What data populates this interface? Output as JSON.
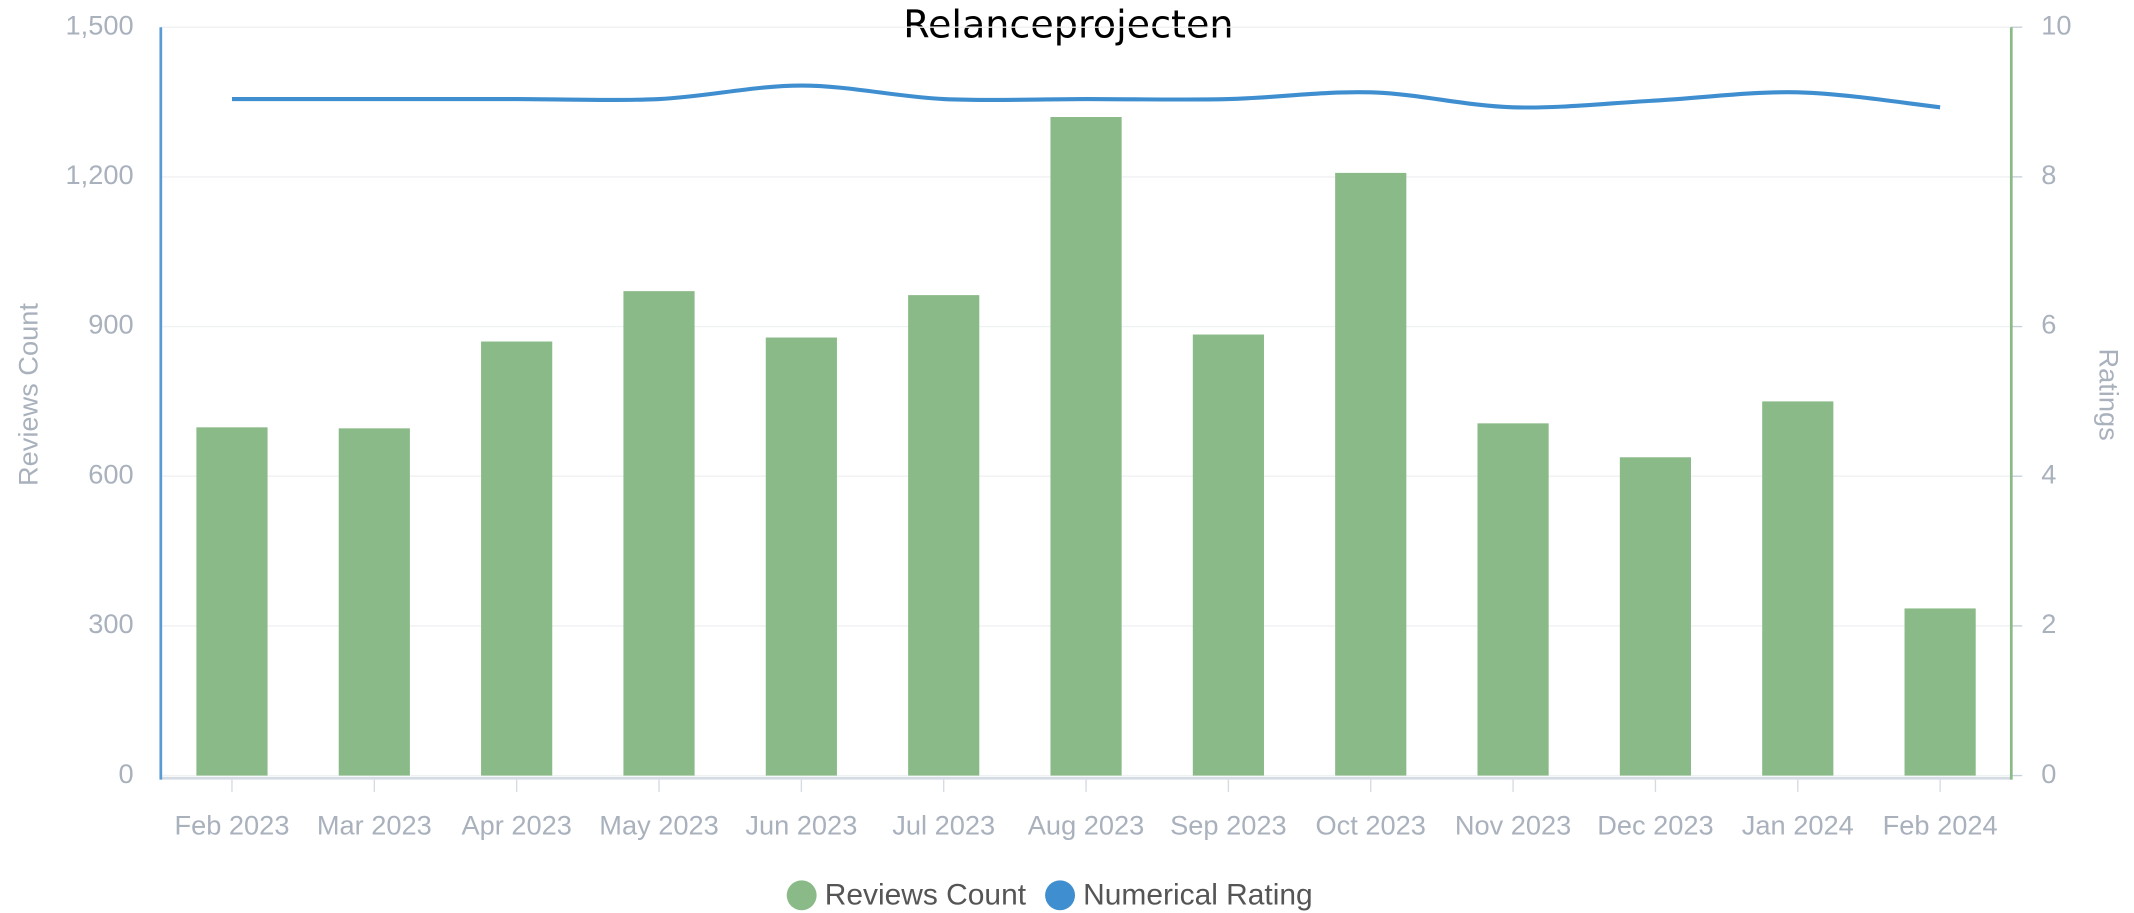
{
  "chart_data": {
    "type": "bar",
    "title": "Relanceprojecten",
    "categories": [
      "Feb 2023",
      "Mar 2023",
      "Apr 2023",
      "May 2023",
      "Jun 2023",
      "Jul 2023",
      "Aug 2023",
      "Sep 2023",
      "Oct 2023",
      "Nov 2023",
      "Dec 2023",
      "Jan 2024",
      "Feb 2024"
    ],
    "series": [
      {
        "name": "Reviews Count",
        "type": "bar",
        "color": "#8aba87",
        "values": [
          698,
          696,
          870,
          971,
          878,
          963,
          1320,
          884,
          1208,
          706,
          638,
          750,
          335
        ]
      },
      {
        "name": "Numerical Rating",
        "type": "line",
        "axis": "y2",
        "color": "#3f8fd0",
        "values": [
          9.04,
          9.04,
          9.04,
          9.04,
          9.22,
          9.04,
          9.04,
          9.04,
          9.13,
          8.93,
          9.02,
          9.13,
          8.93
        ]
      }
    ],
    "ylabel": "Reviews Count",
    "y2label": "Ratings",
    "ylim": [
      0,
      1500
    ],
    "yticks": [
      0,
      300,
      600,
      900,
      {
        "value": 1200,
        "label": "1,200"
      },
      {
        "value": 1500,
        "label": "1,500"
      }
    ],
    "y2lim": [
      0,
      10
    ],
    "y2ticks": [
      0,
      2,
      4,
      6,
      8,
      10
    ],
    "grid": true,
    "legend": "bottom"
  }
}
